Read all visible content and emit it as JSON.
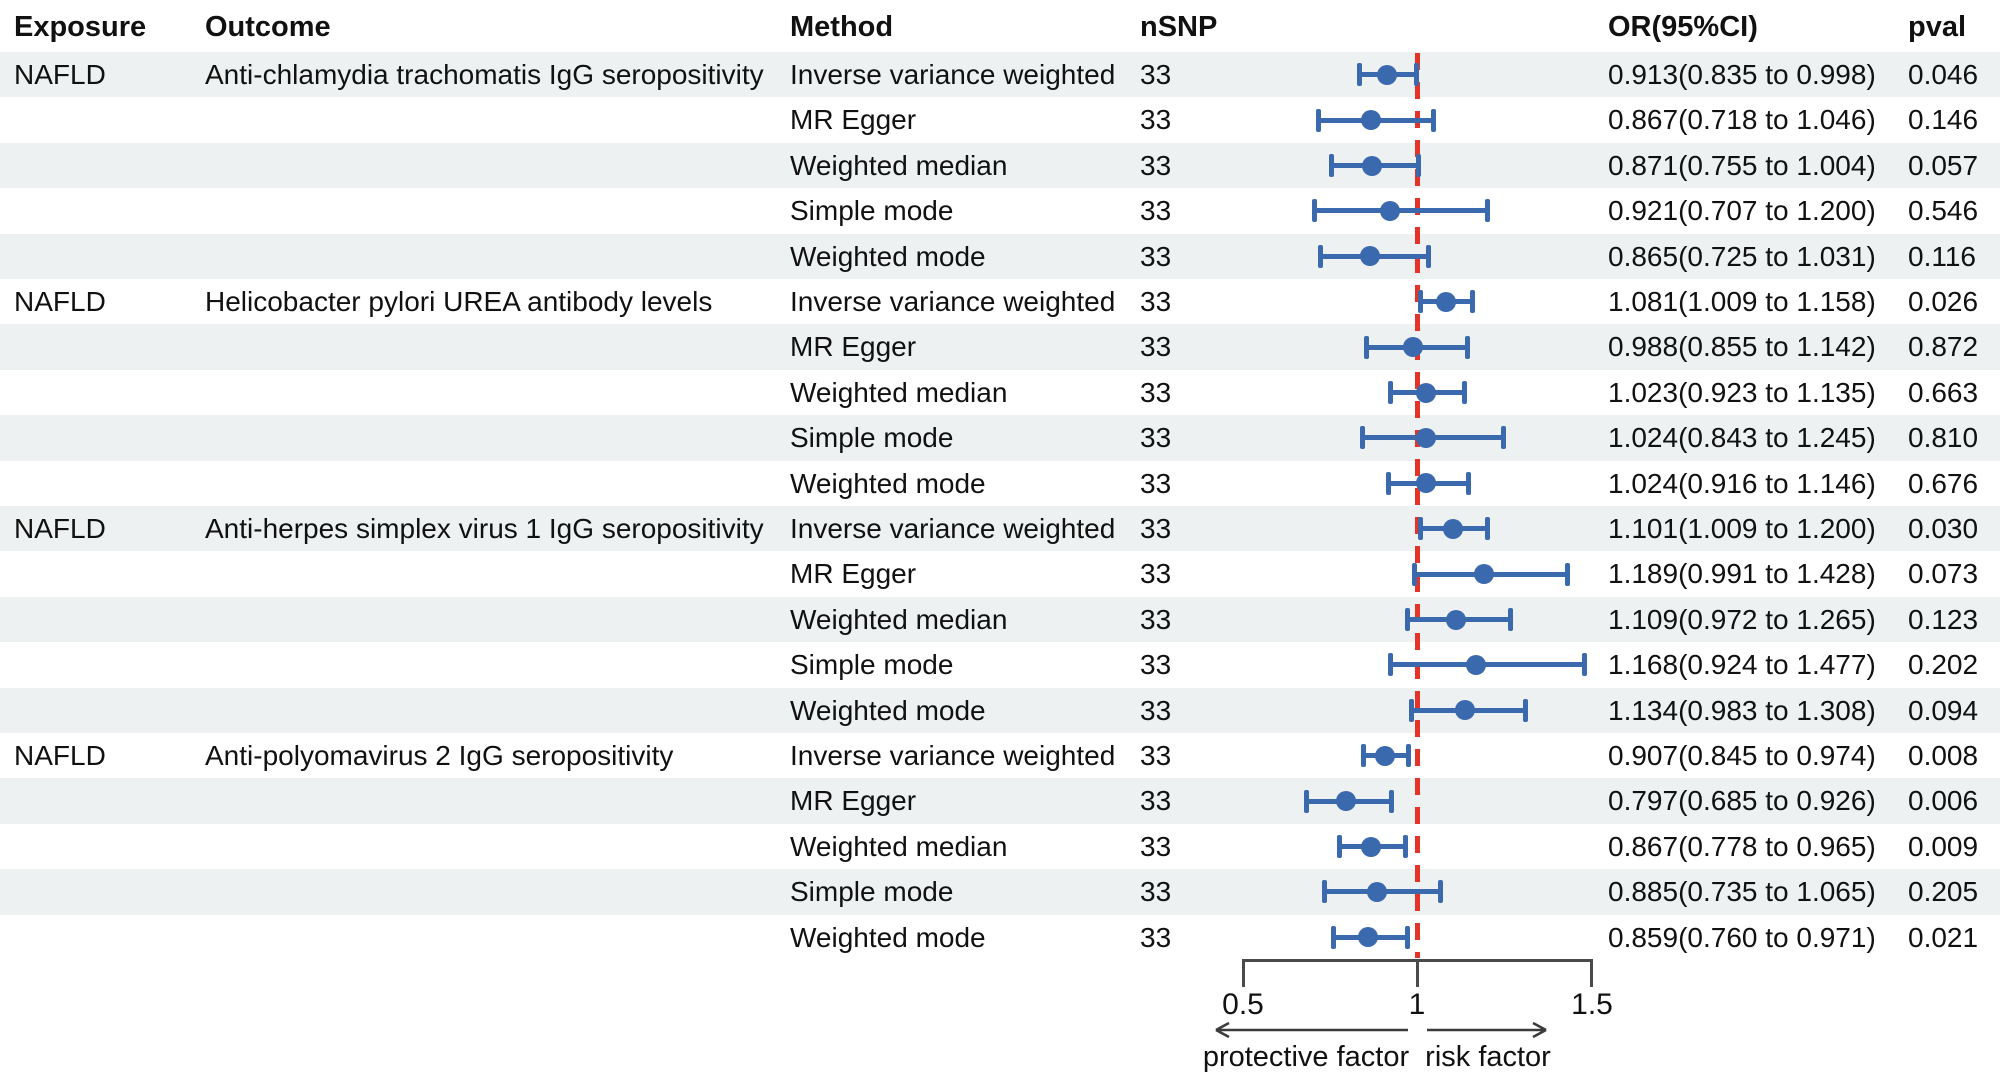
{
  "table": {
    "headers": {
      "exposure": "Exposure",
      "outcome": "Outcome",
      "method": "Method",
      "nsnp": "nSNP",
      "or_ci": "OR(95%CI)",
      "pval": "pval"
    }
  },
  "chart_data": {
    "type": "forest",
    "x_axis": {
      "scale": "linear",
      "tick_values": [
        0.5,
        1,
        1.5
      ],
      "ticks": [
        "0.5",
        "1",
        "1.5"
      ],
      "ref_line": 1.0,
      "xlim": [
        0.45,
        1.55
      ]
    },
    "footer": {
      "left_label": "protective factor",
      "right_label": "risk factor"
    },
    "colors": {
      "marker": "#3A69AE",
      "ci_line": "#3A69AE",
      "ref_line": "#E43428",
      "row_stripe": "#EDF1F1",
      "axis": "#4A4A4A",
      "text": "#111111"
    },
    "rows": [
      {
        "exposure": "NAFLD",
        "outcome": "Anti-chlamydia trachomatis IgG seropositivity",
        "method": "Inverse variance weighted",
        "nsnp": "33",
        "or_ci": "0.913(0.835 to 0.998)",
        "pval": "0.046",
        "est": 0.913,
        "lo": 0.835,
        "hi": 0.998
      },
      {
        "exposure": "",
        "outcome": "",
        "method": "MR Egger",
        "nsnp": "33",
        "or_ci": "0.867(0.718 to 1.046)",
        "pval": "0.146",
        "est": 0.867,
        "lo": 0.718,
        "hi": 1.046
      },
      {
        "exposure": "",
        "outcome": "",
        "method": "Weighted median",
        "nsnp": "33",
        "or_ci": "0.871(0.755 to 1.004)",
        "pval": "0.057",
        "est": 0.871,
        "lo": 0.755,
        "hi": 1.004
      },
      {
        "exposure": "",
        "outcome": "",
        "method": "Simple mode",
        "nsnp": "33",
        "or_ci": "0.921(0.707 to 1.200)",
        "pval": "0.546",
        "est": 0.921,
        "lo": 0.707,
        "hi": 1.2
      },
      {
        "exposure": "",
        "outcome": "",
        "method": "Weighted mode",
        "nsnp": "33",
        "or_ci": "0.865(0.725 to 1.031)",
        "pval": "0.116",
        "est": 0.865,
        "lo": 0.725,
        "hi": 1.031
      },
      {
        "exposure": "NAFLD",
        "outcome": "Helicobacter pylori UREA antibody levels",
        "method": "Inverse variance weighted",
        "nsnp": "33",
        "or_ci": "1.081(1.009 to 1.158)",
        "pval": "0.026",
        "est": 1.081,
        "lo": 1.009,
        "hi": 1.158
      },
      {
        "exposure": "",
        "outcome": "",
        "method": "MR Egger",
        "nsnp": "33",
        "or_ci": "0.988(0.855 to 1.142)",
        "pval": "0.872",
        "est": 0.988,
        "lo": 0.855,
        "hi": 1.142
      },
      {
        "exposure": "",
        "outcome": "",
        "method": "Weighted median",
        "nsnp": "33",
        "or_ci": "1.023(0.923 to 1.135)",
        "pval": "0.663",
        "est": 1.023,
        "lo": 0.923,
        "hi": 1.135
      },
      {
        "exposure": "",
        "outcome": "",
        "method": "Simple mode",
        "nsnp": "33",
        "or_ci": "1.024(0.843 to 1.245)",
        "pval": "0.810",
        "est": 1.024,
        "lo": 0.843,
        "hi": 1.245
      },
      {
        "exposure": "",
        "outcome": "",
        "method": "Weighted mode",
        "nsnp": "33",
        "or_ci": "1.024(0.916 to 1.146)",
        "pval": "0.676",
        "est": 1.024,
        "lo": 0.916,
        "hi": 1.146
      },
      {
        "exposure": "NAFLD",
        "outcome": "Anti-herpes simplex virus 1 IgG seropositivity",
        "method": "Inverse variance weighted",
        "nsnp": "33",
        "or_ci": "1.101(1.009 to 1.200)",
        "pval": "0.030",
        "est": 1.101,
        "lo": 1.009,
        "hi": 1.2
      },
      {
        "exposure": "",
        "outcome": "",
        "method": "MR Egger",
        "nsnp": "33",
        "or_ci": "1.189(0.991 to 1.428)",
        "pval": "0.073",
        "est": 1.189,
        "lo": 0.991,
        "hi": 1.428
      },
      {
        "exposure": "",
        "outcome": "",
        "method": "Weighted median",
        "nsnp": "33",
        "or_ci": "1.109(0.972 to 1.265)",
        "pval": "0.123",
        "est": 1.109,
        "lo": 0.972,
        "hi": 1.265
      },
      {
        "exposure": "",
        "outcome": "",
        "method": "Simple mode",
        "nsnp": "33",
        "or_ci": "1.168(0.924 to 1.477)",
        "pval": "0.202",
        "est": 1.168,
        "lo": 0.924,
        "hi": 1.477
      },
      {
        "exposure": "",
        "outcome": "",
        "method": "Weighted mode",
        "nsnp": "33",
        "or_ci": "1.134(0.983 to 1.308)",
        "pval": "0.094",
        "est": 1.134,
        "lo": 0.983,
        "hi": 1.308
      },
      {
        "exposure": "NAFLD",
        "outcome": "Anti-polyomavirus 2 IgG seropositivity",
        "method": "Inverse variance weighted",
        "nsnp": "33",
        "or_ci": "0.907(0.845 to 0.974)",
        "pval": "0.008",
        "est": 0.907,
        "lo": 0.845,
        "hi": 0.974
      },
      {
        "exposure": "",
        "outcome": "",
        "method": "MR Egger",
        "nsnp": "33",
        "or_ci": "0.797(0.685 to 0.926)",
        "pval": "0.006",
        "est": 0.797,
        "lo": 0.685,
        "hi": 0.926
      },
      {
        "exposure": "",
        "outcome": "",
        "method": "Weighted median",
        "nsnp": "33",
        "or_ci": "0.867(0.778 to 0.965)",
        "pval": "0.009",
        "est": 0.867,
        "lo": 0.778,
        "hi": 0.965
      },
      {
        "exposure": "",
        "outcome": "",
        "method": "Simple mode",
        "nsnp": "33",
        "or_ci": "0.885(0.735 to 1.065)",
        "pval": "0.205",
        "est": 0.885,
        "lo": 0.735,
        "hi": 1.065
      },
      {
        "exposure": "",
        "outcome": "",
        "method": "Weighted mode",
        "nsnp": "33",
        "or_ci": "0.859(0.760 to 0.971)",
        "pval": "0.021",
        "est": 0.859,
        "lo": 0.76,
        "hi": 0.971
      }
    ]
  }
}
